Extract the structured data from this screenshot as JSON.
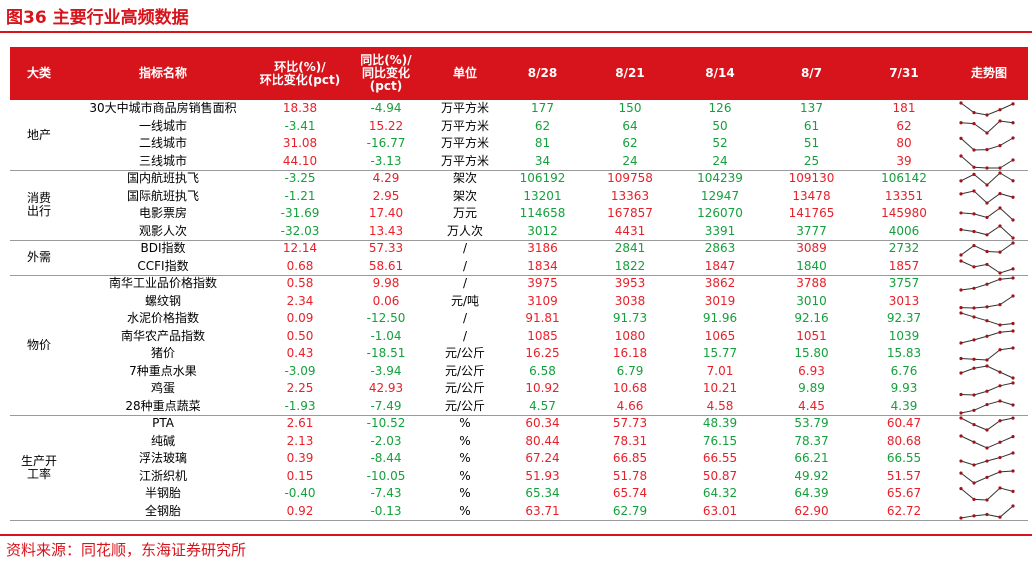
{
  "header": {
    "title": "图36 主要行业高频数据"
  },
  "table": {
    "columns": [
      "大类",
      "指标名称",
      "环比(%)/\n环比变化(pct)",
      "同比(%)/\n同比变化\n(pct)",
      "单位",
      "8/28",
      "8/21",
      "8/14",
      "8/7",
      "7/31",
      "走势图"
    ],
    "groups": [
      {
        "name": "地产",
        "rows": [
          {
            "name": "30大中城市商品房销售面积",
            "mom": "18.38",
            "yoy": "-4.94",
            "unit": "万平方米",
            "values": [
              "177",
              "150",
              "126",
              "137",
              "181"
            ],
            "colors": [
              "#14a03c",
              "#14a03c",
              "#14a03c",
              "#14a03c",
              "#e8202a"
            ]
          },
          {
            "name": "一线城市",
            "mom": "-3.41",
            "yoy": "15.22",
            "unit": "万平方米",
            "values": [
              "62",
              "64",
              "50",
              "61",
              "62"
            ],
            "colors": [
              "#14a03c",
              "#14a03c",
              "#14a03c",
              "#14a03c",
              "#e8202a"
            ]
          },
          {
            "name": "二线城市",
            "mom": "31.08",
            "yoy": "-16.77",
            "unit": "万平方米",
            "values": [
              "81",
              "62",
              "52",
              "51",
              "80"
            ],
            "colors": [
              "#14a03c",
              "#14a03c",
              "#14a03c",
              "#14a03c",
              "#e8202a"
            ]
          },
          {
            "name": "三线城市",
            "mom": "44.10",
            "yoy": "-3.13",
            "unit": "万平方米",
            "values": [
              "34",
              "24",
              "24",
              "25",
              "39"
            ],
            "colors": [
              "#14a03c",
              "#14a03c",
              "#14a03c",
              "#14a03c",
              "#e8202a"
            ]
          }
        ]
      },
      {
        "name": "消费\n出行",
        "rows": [
          {
            "name": "国内航班执飞",
            "mom": "-3.25",
            "yoy": "4.29",
            "unit": "架次",
            "values": [
              "106192",
              "109758",
              "104239",
              "109130",
              "106142"
            ],
            "colors": [
              "#14a03c",
              "#e8202a",
              "#14a03c",
              "#e8202a",
              "#14a03c"
            ]
          },
          {
            "name": "国际航班执飞",
            "mom": "-1.21",
            "yoy": "2.95",
            "unit": "架次",
            "values": [
              "13201",
              "13363",
              "12947",
              "13478",
              "13351"
            ],
            "colors": [
              "#14a03c",
              "#e8202a",
              "#14a03c",
              "#e8202a",
              "#e8202a"
            ]
          },
          {
            "name": "电影票房",
            "mom": "-31.69",
            "yoy": "17.40",
            "unit": "万元",
            "values": [
              "114658",
              "167857",
              "126070",
              "141765",
              "145980"
            ],
            "colors": [
              "#14a03c",
              "#e8202a",
              "#14a03c",
              "#e8202a",
              "#e8202a"
            ]
          },
          {
            "name": "观影人次",
            "mom": "-32.03",
            "yoy": "13.43",
            "unit": "万人次",
            "values": [
              "3012",
              "4431",
              "3391",
              "3777",
              "4006"
            ],
            "colors": [
              "#14a03c",
              "#e8202a",
              "#14a03c",
              "#14a03c",
              "#14a03c"
            ]
          }
        ]
      },
      {
        "name": "外需",
        "rows": [
          {
            "name": "BDI指数",
            "mom": "12.14",
            "yoy": "57.33",
            "unit": "/",
            "values": [
              "3186",
              "2841",
              "2863",
              "3089",
              "2732"
            ],
            "colors": [
              "#e8202a",
              "#14a03c",
              "#14a03c",
              "#e8202a",
              "#14a03c"
            ]
          },
          {
            "name": "CCFI指数",
            "mom": "0.68",
            "yoy": "58.61",
            "unit": "/",
            "values": [
              "1834",
              "1822",
              "1847",
              "1840",
              "1857"
            ],
            "colors": [
              "#e8202a",
              "#14a03c",
              "#e8202a",
              "#14a03c",
              "#e8202a"
            ]
          }
        ]
      },
      {
        "name": "物价",
        "rows": [
          {
            "name": "南华工业品价格指数",
            "mom": "0.58",
            "yoy": "9.98",
            "unit": "/",
            "values": [
              "3975",
              "3953",
              "3862",
              "3788",
              "3757"
            ],
            "colors": [
              "#e8202a",
              "#e8202a",
              "#e8202a",
              "#e8202a",
              "#14a03c"
            ]
          },
          {
            "name": "螺纹钢",
            "mom": "2.34",
            "yoy": "0.06",
            "unit": "元/吨",
            "values": [
              "3109",
              "3038",
              "3019",
              "3010",
              "3013"
            ],
            "colors": [
              "#e8202a",
              "#e8202a",
              "#e8202a",
              "#14a03c",
              "#e8202a"
            ]
          },
          {
            "name": "水泥价格指数",
            "mom": "0.09",
            "yoy": "-12.50",
            "unit": "/",
            "values": [
              "91.81",
              "91.73",
              "91.96",
              "92.16",
              "92.37"
            ],
            "colors": [
              "#e8202a",
              "#14a03c",
              "#14a03c",
              "#14a03c",
              "#14a03c"
            ]
          },
          {
            "name": "南华农产品指数",
            "mom": "0.50",
            "yoy": "-1.04",
            "unit": "/",
            "values": [
              "1085",
              "1080",
              "1065",
              "1051",
              "1039"
            ],
            "colors": [
              "#e8202a",
              "#e8202a",
              "#e8202a",
              "#e8202a",
              "#14a03c"
            ]
          },
          {
            "name": "猪价",
            "mom": "0.43",
            "yoy": "-18.51",
            "unit": "元/公斤",
            "values": [
              "16.25",
              "16.18",
              "15.77",
              "15.80",
              "15.83"
            ],
            "colors": [
              "#e8202a",
              "#e8202a",
              "#14a03c",
              "#14a03c",
              "#14a03c"
            ]
          },
          {
            "name": "7种重点水果",
            "mom": "-3.09",
            "yoy": "-3.94",
            "unit": "元/公斤",
            "values": [
              "6.58",
              "6.79",
              "7.01",
              "6.93",
              "6.76"
            ],
            "colors": [
              "#14a03c",
              "#14a03c",
              "#e8202a",
              "#e8202a",
              "#14a03c"
            ]
          },
          {
            "name": "鸡蛋",
            "mom": "2.25",
            "yoy": "42.93",
            "unit": "元/公斤",
            "values": [
              "10.92",
              "10.68",
              "10.21",
              "9.89",
              "9.93"
            ],
            "colors": [
              "#e8202a",
              "#e8202a",
              "#e8202a",
              "#14a03c",
              "#14a03c"
            ]
          },
          {
            "name": "28种重点蔬菜",
            "mom": "-1.93",
            "yoy": "-7.49",
            "unit": "元/公斤",
            "values": [
              "4.57",
              "4.66",
              "4.58",
              "4.45",
              "4.39"
            ],
            "colors": [
              "#14a03c",
              "#e8202a",
              "#e8202a",
              "#e8202a",
              "#14a03c"
            ]
          }
        ]
      },
      {
        "name": "生产开\n工率",
        "rows": [
          {
            "name": "PTA",
            "mom": "2.61",
            "yoy": "-10.52",
            "unit": "%",
            "values": [
              "60.34",
              "57.73",
              "48.39",
              "53.79",
              "60.47"
            ],
            "colors": [
              "#e8202a",
              "#e8202a",
              "#14a03c",
              "#14a03c",
              "#e8202a"
            ]
          },
          {
            "name": "纯碱",
            "mom": "2.13",
            "yoy": "-2.03",
            "unit": "%",
            "values": [
              "80.44",
              "78.31",
              "76.15",
              "78.37",
              "80.68"
            ],
            "colors": [
              "#e8202a",
              "#e8202a",
              "#14a03c",
              "#14a03c",
              "#e8202a"
            ]
          },
          {
            "name": "浮法玻璃",
            "mom": "0.39",
            "yoy": "-8.44",
            "unit": "%",
            "values": [
              "67.24",
              "66.85",
              "66.55",
              "66.21",
              "66.55"
            ],
            "colors": [
              "#e8202a",
              "#e8202a",
              "#e8202a",
              "#14a03c",
              "#14a03c"
            ]
          },
          {
            "name": "江浙织机",
            "mom": "0.15",
            "yoy": "-10.05",
            "unit": "%",
            "values": [
              "51.93",
              "51.78",
              "50.87",
              "49.92",
              "51.57"
            ],
            "colors": [
              "#e8202a",
              "#e8202a",
              "#e8202a",
              "#14a03c",
              "#e8202a"
            ]
          },
          {
            "name": "半钢胎",
            "mom": "-0.40",
            "yoy": "-7.43",
            "unit": "%",
            "values": [
              "65.34",
              "65.74",
              "64.32",
              "64.39",
              "65.67"
            ],
            "colors": [
              "#14a03c",
              "#e8202a",
              "#14a03c",
              "#14a03c",
              "#e8202a"
            ]
          },
          {
            "name": "全钢胎",
            "mom": "0.92",
            "yoy": "-0.13",
            "unit": "%",
            "values": [
              "63.71",
              "62.79",
              "63.01",
              "62.90",
              "62.72"
            ],
            "colors": [
              "#e8202a",
              "#14a03c",
              "#e8202a",
              "#e8202a",
              "#e8202a"
            ]
          }
        ]
      }
    ]
  },
  "source": "资料来源：同花顺，东海证券研究所"
}
